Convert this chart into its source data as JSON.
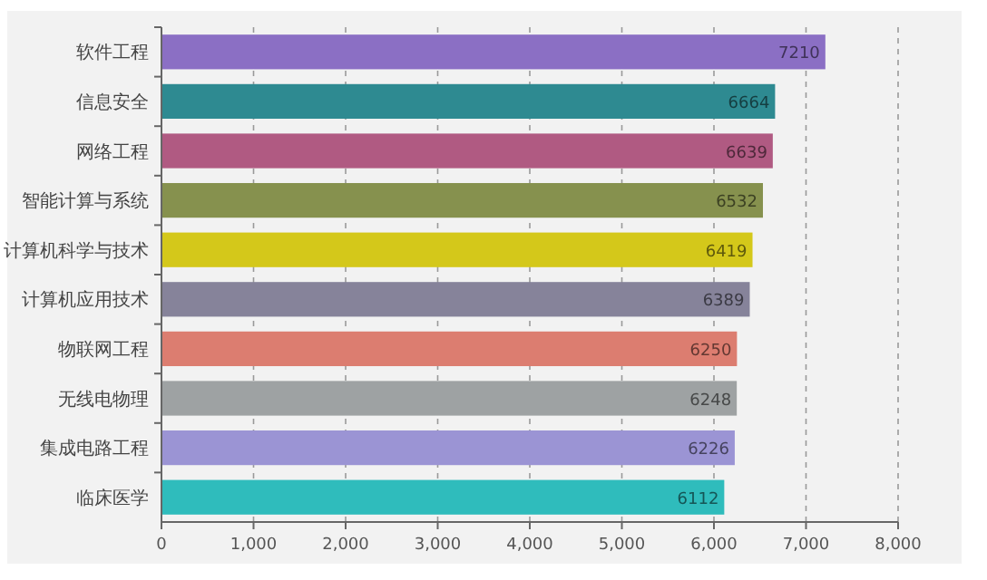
{
  "chart_data": {
    "type": "bar",
    "orientation": "horizontal",
    "categories": [
      "软件工程",
      "信息安全",
      "网络工程",
      "智能计算与系统",
      "计算机科学与技术",
      "计算机应用技术",
      "物联网工程",
      "无线电物理",
      "集成电路工程",
      "临床医学"
    ],
    "values": [
      7210,
      6664,
      6639,
      6532,
      6419,
      6389,
      6250,
      6248,
      6226,
      6112
    ],
    "colors": [
      "#8b6fc4",
      "#2e8a91",
      "#b05a82",
      "#86914e",
      "#d4c81a",
      "#86839a",
      "#dc7d70",
      "#9ea2a3",
      "#9b94d4",
      "#2fbcbc"
    ],
    "xlim": [
      0,
      8000
    ],
    "xticks": [
      0,
      {
        "value": 1000,
        "label": "1,000"
      },
      {
        "value": 2000,
        "label": "2,000"
      },
      {
        "value": 3000,
        "label": "3,000"
      },
      {
        "value": 4000,
        "label": "4,000"
      },
      {
        "value": 5000,
        "label": "5,000"
      },
      {
        "value": 6000,
        "label": "6,000"
      },
      {
        "value": 7000,
        "label": "7,000"
      },
      {
        "value": 8000,
        "label": "8,000"
      }
    ],
    "grid": "x",
    "data_labels": true
  }
}
